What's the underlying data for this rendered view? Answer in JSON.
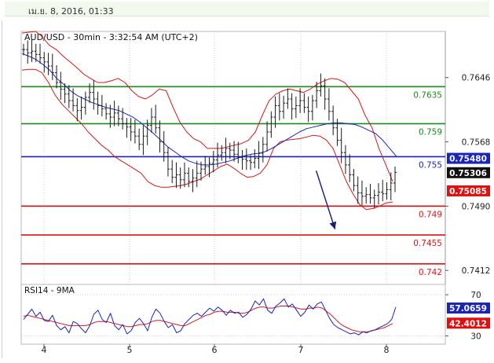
{
  "header": {
    "date": "เม.ย. 8, 2016, 01:33"
  },
  "chart_data": [
    {
      "type": "line",
      "title": "AUD/USD - 30min - 3:32:54 AM (UTC+2)",
      "x_ticks": [
        "4",
        "5",
        "6",
        "7",
        "8"
      ],
      "ylim": [
        0.7395,
        0.7702
      ],
      "y_ticks": [
        0.7646,
        0.7568,
        0.749,
        0.7412
      ],
      "y_tick_labels": [
        "0.7646",
        "0.7568",
        "0.7490",
        "0.7412"
      ],
      "levels": [
        {
          "value": 0.7635,
          "label": "0.7635",
          "color": "#1a8a1a"
        },
        {
          "value": 0.759,
          "label": "0.759",
          "color": "#1a8a1a"
        },
        {
          "value": 0.755,
          "label": "0.755",
          "color": "#1a24b8"
        },
        {
          "value": 0.749,
          "label": "0.749",
          "color": "#e01010"
        },
        {
          "value": 0.7455,
          "label": "0.7455",
          "color": "#e01010"
        },
        {
          "value": 0.742,
          "label": "0.742",
          "color": "#e01010"
        }
      ],
      "price_tags": [
        {
          "value": 0.7548,
          "label": "0.75480",
          "bg": "#1a24b8",
          "fg": "#ffffff"
        },
        {
          "value": 0.75306,
          "label": "0.75306",
          "bg": "#111111",
          "fg": "#ffffff"
        },
        {
          "value": 0.75085,
          "label": "0.75085",
          "bg": "#e01010",
          "fg": "#ffffff"
        }
      ],
      "price_series": [
        0.768,
        0.7676,
        0.7678,
        0.7674,
        0.767,
        0.7665,
        0.766,
        0.7652,
        0.764,
        0.7632,
        0.7626,
        0.7618,
        0.7612,
        0.7606,
        0.761,
        0.7622,
        0.7628,
        0.762,
        0.7612,
        0.7608,
        0.7602,
        0.7598,
        0.7603,
        0.7596,
        0.759,
        0.7586,
        0.758,
        0.7575,
        0.7565,
        0.7575,
        0.7588,
        0.7598,
        0.7585,
        0.7568,
        0.7555,
        0.7535,
        0.7525,
        0.7528,
        0.7522,
        0.753,
        0.752,
        0.7524,
        0.753,
        0.7535,
        0.7538,
        0.7542,
        0.7546,
        0.7552,
        0.7555,
        0.756,
        0.7558,
        0.7553,
        0.7549,
        0.7547,
        0.7545,
        0.7543,
        0.7548,
        0.7554,
        0.7565,
        0.758,
        0.7598,
        0.7612,
        0.7605,
        0.7615,
        0.762,
        0.7608,
        0.7612,
        0.7618,
        0.761,
        0.7605,
        0.7618,
        0.763,
        0.7636,
        0.762,
        0.7605,
        0.7585,
        0.757,
        0.7555,
        0.754,
        0.7528,
        0.7515,
        0.7506,
        0.7502,
        0.7504,
        0.75,
        0.7503,
        0.7507,
        0.7505,
        0.751,
        0.7518,
        0.7531
      ],
      "bb_upper": [
        0.77,
        0.7701,
        0.7702,
        0.7695,
        0.7685,
        0.768,
        0.7672,
        0.7665,
        0.7658,
        0.765,
        0.7645,
        0.764,
        0.764,
        0.7642,
        0.7645,
        0.764,
        0.763,
        0.7623,
        0.762,
        0.7625,
        0.7632,
        0.763,
        0.761,
        0.7592,
        0.758,
        0.7572,
        0.7568,
        0.756,
        0.756,
        0.756,
        0.7562,
        0.7564,
        0.7566,
        0.757,
        0.758,
        0.76,
        0.7618,
        0.7626,
        0.763,
        0.7632,
        0.763,
        0.7628,
        0.7632,
        0.7638,
        0.7642,
        0.7645,
        0.7644,
        0.764,
        0.763,
        0.762,
        0.76,
        0.7585,
        0.756,
        0.754,
        0.752
      ],
      "bb_lower": [
        0.7655,
        0.7656,
        0.7656,
        0.7652,
        0.764,
        0.7625,
        0.7614,
        0.7606,
        0.7598,
        0.759,
        0.758,
        0.7572,
        0.7564,
        0.7558,
        0.755,
        0.7545,
        0.754,
        0.7535,
        0.753,
        0.752,
        0.7515,
        0.7513,
        0.7513,
        0.7514,
        0.7515,
        0.7517,
        0.752,
        0.7523,
        0.7528,
        0.7533,
        0.7538,
        0.7541,
        0.7536,
        0.753,
        0.7525,
        0.7526,
        0.753,
        0.754,
        0.756,
        0.7568,
        0.757,
        0.7571,
        0.7572,
        0.7574,
        0.7576,
        0.7575,
        0.757,
        0.756,
        0.754,
        0.752,
        0.7505,
        0.7492,
        0.7486,
        0.7487,
        0.749,
        0.7494,
        0.7495
      ],
      "ma": [
        0.7675,
        0.7672,
        0.7668,
        0.7662,
        0.7655,
        0.7645,
        0.7638,
        0.763,
        0.7624,
        0.762,
        0.7616,
        0.7613,
        0.761,
        0.7608,
        0.7606,
        0.7602,
        0.7598,
        0.7592,
        0.7585,
        0.7578,
        0.757,
        0.7562,
        0.7556,
        0.755,
        0.7545,
        0.7542,
        0.754,
        0.754,
        0.7541,
        0.7543,
        0.7545,
        0.7548,
        0.7551,
        0.7553,
        0.7554,
        0.7556,
        0.756,
        0.7565,
        0.757,
        0.7575,
        0.758,
        0.7584,
        0.7586,
        0.7588,
        0.759,
        0.7591,
        0.7591,
        0.759,
        0.7589,
        0.7586,
        0.7582,
        0.7578,
        0.757,
        0.756,
        0.755
      ],
      "trend_arrow": {
        "from": [
          7.18,
          0.7533
        ],
        "to": [
          7.4,
          0.7462
        ]
      }
    },
    {
      "type": "line",
      "title": "RSI14 - 9MA",
      "ylim": [
        22,
        80
      ],
      "y_ticks": [
        70,
        30
      ],
      "y_tick_labels": [
        "70",
        "30"
      ],
      "price_tags": [
        {
          "value": 57.0659,
          "label": "57.0659",
          "bg": "#1a24b8",
          "fg": "#ffffff"
        },
        {
          "value": 42.4012,
          "label": "42.4012",
          "bg": "#e01010",
          "fg": "#ffffff"
        }
      ],
      "rsi_series": [
        46,
        51,
        56,
        49,
        53,
        45,
        44,
        50,
        40,
        36,
        39,
        33,
        44,
        42,
        37,
        33,
        40,
        51,
        55,
        46,
        43,
        52,
        40,
        36,
        41,
        32,
        35,
        43,
        47,
        42,
        35,
        48,
        56,
        52,
        44,
        38,
        41,
        33,
        35,
        42,
        46,
        50,
        52,
        49,
        53,
        57,
        54,
        58,
        55,
        50,
        55,
        52,
        53,
        48,
        51,
        56,
        64,
        60,
        66,
        55,
        52,
        59,
        62,
        66,
        58,
        61,
        55,
        49,
        53,
        60,
        56,
        61,
        63,
        55,
        47,
        41,
        38,
        36,
        34,
        32,
        33,
        31,
        34,
        33,
        35,
        36,
        38,
        40,
        42,
        46,
        58
      ],
      "ma_series": [
        49,
        50,
        49,
        48,
        47,
        46,
        45,
        44,
        43,
        42,
        41,
        40,
        40,
        40,
        40,
        40,
        41,
        43,
        44,
        44,
        44,
        43,
        42,
        41,
        40,
        39,
        39,
        40,
        41,
        41,
        42,
        44,
        45,
        45,
        44,
        43,
        42,
        41,
        40,
        40,
        42,
        44,
        46,
        48,
        50,
        51,
        53,
        54,
        54,
        53,
        53,
        53,
        52,
        52,
        53,
        55,
        57,
        58,
        58,
        57,
        57,
        58,
        59,
        59,
        59,
        58,
        57,
        56,
        56,
        57,
        57,
        58,
        57,
        54,
        51,
        47,
        43,
        40,
        38,
        36,
        35,
        34,
        34,
        34,
        35,
        36,
        37,
        38,
        40,
        42
      ]
    }
  ]
}
